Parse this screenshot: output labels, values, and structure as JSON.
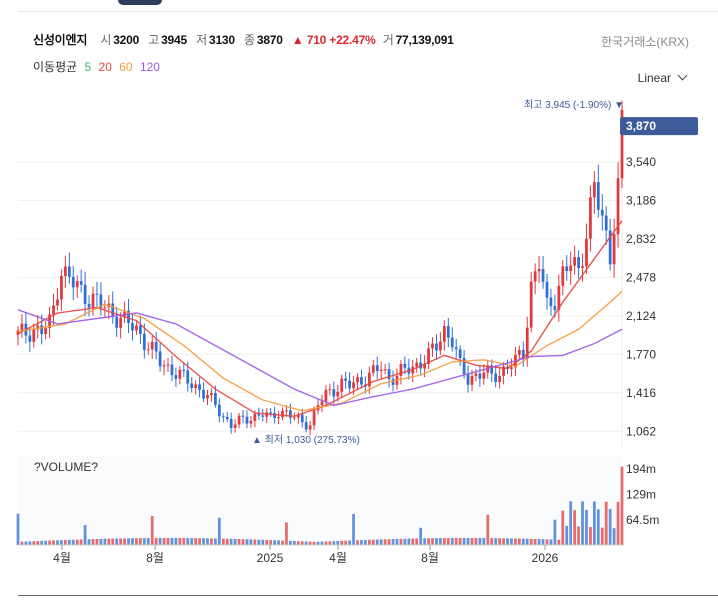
{
  "stock": {
    "name": "신성이엔지",
    "open_label": "시",
    "open": "3200",
    "high_label": "고",
    "high": "3945",
    "low_label": "저",
    "low": "3130",
    "close_label": "종",
    "close": "3870",
    "change": "▲ 710 +22.47%",
    "volume_label": "거",
    "volume": "77,139,091"
  },
  "exchange": "한국거래소(KRX)",
  "ma_legend": {
    "label": "이동평균",
    "p5": "5",
    "p20": "20",
    "p60": "60",
    "p120": "120"
  },
  "ma_colors": {
    "p5": "#3cb371",
    "p20": "#e8453c",
    "p60": "#f39c3c",
    "p120": "#9b59e8"
  },
  "scale_mode": "Linear",
  "colors": {
    "up": "#e0393e",
    "down": "#2f6fd6",
    "current_badge": "#3d5a99"
  },
  "chart_data": {
    "type": "candlestick",
    "y_axis_ticks": [
      "3,540",
      "3,186",
      "2,832",
      "2,478",
      "2,124",
      "1,770",
      "1,416",
      "1,062"
    ],
    "x_axis_ticks": [
      "4월",
      "8월",
      "2025",
      "4월",
      "8월",
      "2026"
    ],
    "ylim": [
      1062,
      3945
    ],
    "current_price": "3,870",
    "high_annotation": "최고 3,945 (-1.90%) ▼",
    "low_annotation": "▲ 최저 1,030 (275.73%)",
    "price_path": [
      [
        0,
        1950
      ],
      [
        2,
        1970
      ],
      [
        4,
        2000
      ],
      [
        6,
        1980
      ],
      [
        8,
        2050
      ],
      [
        9,
        2200
      ],
      [
        10,
        2400
      ],
      [
        11,
        2550
      ],
      [
        12,
        2500
      ],
      [
        14,
        2420
      ],
      [
        16,
        2350
      ],
      [
        18,
        2300
      ],
      [
        20,
        2250
      ],
      [
        22,
        2200
      ],
      [
        24,
        2150
      ],
      [
        26,
        2100
      ],
      [
        28,
        2050
      ],
      [
        30,
        2000
      ],
      [
        32,
        1900
      ],
      [
        34,
        1800
      ],
      [
        36,
        1700
      ],
      [
        38,
        1650
      ],
      [
        40,
        1600
      ],
      [
        42,
        1550
      ],
      [
        44,
        1500
      ],
      [
        46,
        1450
      ],
      [
        48,
        1380
      ],
      [
        50,
        1300
      ],
      [
        52,
        1200
      ],
      [
        54,
        1120
      ],
      [
        56,
        1150
      ],
      [
        58,
        1180
      ],
      [
        60,
        1200
      ],
      [
        62,
        1220
      ],
      [
        64,
        1180
      ],
      [
        66,
        1250
      ],
      [
        68,
        1230
      ],
      [
        70,
        1180
      ],
      [
        72,
        1150
      ],
      [
        74,
        1130
      ],
      [
        76,
        1300
      ],
      [
        78,
        1400
      ],
      [
        80,
        1450
      ],
      [
        82,
        1500
      ],
      [
        84,
        1480
      ],
      [
        86,
        1520
      ],
      [
        88,
        1550
      ],
      [
        90,
        1600
      ],
      [
        92,
        1650
      ],
      [
        94,
        1550
      ],
      [
        96,
        1580
      ],
      [
        98,
        1620
      ],
      [
        100,
        1650
      ],
      [
        102,
        1700
      ],
      [
        104,
        1750
      ],
      [
        106,
        1850
      ],
      [
        108,
        2000
      ],
      [
        110,
        1900
      ],
      [
        112,
        1650
      ],
      [
        114,
        1550
      ],
      [
        116,
        1580
      ],
      [
        118,
        1600
      ],
      [
        120,
        1570
      ],
      [
        122,
        1600
      ],
      [
        124,
        1650
      ],
      [
        126,
        1700
      ],
      [
        128,
        1800
      ],
      [
        130,
        2400
      ],
      [
        132,
        2600
      ],
      [
        134,
        2200
      ],
      [
        136,
        2300
      ],
      [
        138,
        2500
      ],
      [
        140,
        2600
      ],
      [
        142,
        2550
      ],
      [
        144,
        2900
      ],
      [
        146,
        3300
      ],
      [
        148,
        3000
      ],
      [
        150,
        2700
      ],
      [
        152,
        3300
      ],
      [
        153,
        3870
      ]
    ],
    "ma20_path": [
      [
        0,
        1960
      ],
      [
        10,
        2150
      ],
      [
        20,
        2200
      ],
      [
        30,
        2080
      ],
      [
        40,
        1750
      ],
      [
        50,
        1450
      ],
      [
        60,
        1230
      ],
      [
        70,
        1200
      ],
      [
        78,
        1300
      ],
      [
        90,
        1520
      ],
      [
        100,
        1630
      ],
      [
        108,
        1760
      ],
      [
        116,
        1670
      ],
      [
        124,
        1640
      ],
      [
        130,
        1800
      ],
      [
        138,
        2250
      ],
      [
        146,
        2650
      ],
      [
        153,
        3000
      ]
    ],
    "ma60_path": [
      [
        0,
        1980
      ],
      [
        12,
        2050
      ],
      [
        22,
        2230
      ],
      [
        32,
        2100
      ],
      [
        42,
        1850
      ],
      [
        52,
        1550
      ],
      [
        62,
        1350
      ],
      [
        72,
        1250
      ],
      [
        82,
        1320
      ],
      [
        92,
        1500
      ],
      [
        102,
        1580
      ],
      [
        110,
        1700
      ],
      [
        118,
        1720
      ],
      [
        126,
        1660
      ],
      [
        134,
        1850
      ],
      [
        142,
        2000
      ],
      [
        150,
        2250
      ],
      [
        153,
        2350
      ]
    ],
    "ma120_path": [
      [
        0,
        2180
      ],
      [
        10,
        2050
      ],
      [
        20,
        2100
      ],
      [
        30,
        2150
      ],
      [
        40,
        2050
      ],
      [
        50,
        1850
      ],
      [
        60,
        1650
      ],
      [
        70,
        1450
      ],
      [
        80,
        1300
      ],
      [
        90,
        1380
      ],
      [
        100,
        1450
      ],
      [
        110,
        1550
      ],
      [
        120,
        1650
      ],
      [
        130,
        1750
      ],
      [
        138,
        1760
      ],
      [
        146,
        1870
      ],
      [
        153,
        2000
      ]
    ],
    "volume_ticks": [
      "194m",
      "129m",
      "64.5m"
    ],
    "volume_title": "?VOLUME?"
  }
}
